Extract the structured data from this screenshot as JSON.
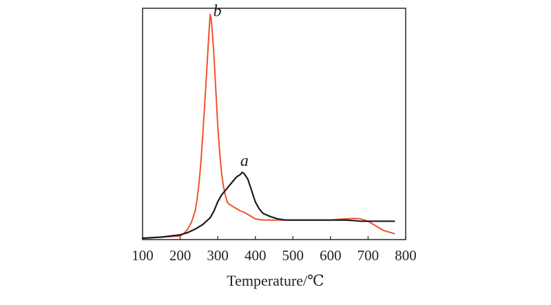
{
  "chart_data": {
    "type": "line",
    "title": "",
    "xlabel": "Temperature/℃",
    "ylabel": "",
    "xlim": [
      100,
      800
    ],
    "ylim": [
      0,
      1
    ],
    "xticks": [
      "100",
      "200",
      "300",
      "400",
      "500",
      "600",
      "700",
      "800"
    ],
    "grid": false,
    "legend": "none",
    "series": [
      {
        "name": "b",
        "color": "#f0502a",
        "x": [
          100,
          150,
          200,
          210,
          220,
          230,
          240,
          245,
          250,
          255,
          260,
          265,
          270,
          275,
          278,
          280,
          282,
          285,
          290,
          295,
          300,
          305,
          310,
          315,
          320,
          325,
          330,
          340,
          350,
          360,
          370,
          380,
          390,
          400,
          420,
          440,
          460,
          480,
          500,
          520,
          540,
          560,
          580,
          600,
          620,
          640,
          660,
          680,
          700,
          720,
          740,
          760,
          770
        ],
        "y": [
          0.0,
          0.005,
          0.01,
          0.02,
          0.04,
          0.07,
          0.12,
          0.17,
          0.24,
          0.33,
          0.45,
          0.58,
          0.72,
          0.86,
          0.94,
          0.985,
          0.97,
          0.92,
          0.8,
          0.65,
          0.5,
          0.38,
          0.29,
          0.23,
          0.19,
          0.16,
          0.15,
          0.14,
          0.13,
          0.12,
          0.115,
          0.105,
          0.095,
          0.085,
          0.08,
          0.08,
          0.08,
          0.08,
          0.08,
          0.08,
          0.08,
          0.08,
          0.08,
          0.08,
          0.083,
          0.085,
          0.087,
          0.085,
          0.075,
          0.055,
          0.035,
          0.025,
          0.02
        ]
      },
      {
        "name": "a",
        "color": "#1a1a1a",
        "x": [
          100,
          150,
          200,
          220,
          240,
          260,
          280,
          290,
          300,
          310,
          320,
          330,
          340,
          350,
          360,
          365,
          370,
          380,
          390,
          400,
          410,
          420,
          440,
          460,
          480,
          500,
          520,
          540,
          560,
          580,
          600,
          620,
          640,
          660,
          680,
          700,
          720,
          740,
          760,
          770
        ],
        "y": [
          0.0,
          0.005,
          0.015,
          0.025,
          0.04,
          0.06,
          0.09,
          0.12,
          0.16,
          0.19,
          0.21,
          0.23,
          0.25,
          0.27,
          0.28,
          0.29,
          0.285,
          0.26,
          0.21,
          0.16,
          0.13,
          0.11,
          0.095,
          0.085,
          0.08,
          0.08,
          0.08,
          0.08,
          0.08,
          0.08,
          0.08,
          0.08,
          0.08,
          0.078,
          0.075,
          0.075,
          0.075,
          0.075,
          0.075,
          0.075
        ]
      }
    ],
    "annotations": [
      {
        "text": "b",
        "x": 288,
        "y": 0.99
      },
      {
        "text": "a",
        "x": 360,
        "y": 0.33
      }
    ]
  }
}
